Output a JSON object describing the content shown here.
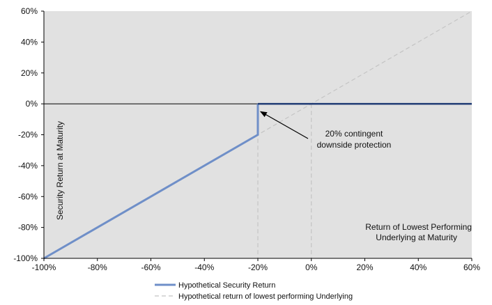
{
  "chart_data": {
    "type": "line",
    "title": "",
    "xlabel": "Return of Lowest Performing Underlying at Maturity",
    "xlabel_lines": [
      "Return of Lowest Performing",
      "Underlying at Maturity"
    ],
    "ylabel": "Security Return at Maturity",
    "xlim": [
      -100,
      60
    ],
    "ylim": [
      -100,
      60
    ],
    "x_ticks": [
      -100,
      -80,
      -60,
      -40,
      -20,
      0,
      20,
      40,
      60
    ],
    "y_ticks": [
      -100,
      -80,
      -60,
      -40,
      -20,
      0,
      20,
      40,
      60
    ],
    "x_tick_labels": [
      "-100%",
      "-80%",
      "-60%",
      "-40%",
      "-20%",
      "0%",
      "20%",
      "40%",
      "60%"
    ],
    "y_tick_labels": [
      "-100%",
      "-80%",
      "-60%",
      "-40%",
      "-20%",
      "0%",
      "20%",
      "40%",
      "60%"
    ],
    "grid": false,
    "legend_position": "bottom",
    "series": [
      {
        "name": "Hypothetical Security Return",
        "x": [
          -100,
          -20,
          -20,
          60
        ],
        "y": [
          -100,
          -20,
          0,
          0
        ],
        "color": "#6f8fc8",
        "color_flat": "#1f3a73",
        "style": "solid"
      },
      {
        "name": "Hypothetical return of lowest performing Underlying",
        "x": [
          -100,
          60
        ],
        "y": [
          -100,
          60
        ],
        "color": "#c4c4c4",
        "style": "dashed"
      }
    ],
    "reference_lines": [
      {
        "axis": "x",
        "value": -20,
        "style": "dashed",
        "color": "#c4c4c4"
      },
      {
        "axis": "x",
        "value": 0,
        "style": "dashed",
        "color": "#c4c4c4"
      },
      {
        "axis": "y",
        "value": 0,
        "style": "solid",
        "color": "#000000"
      }
    ],
    "annotation": {
      "lines": [
        "20% contingent",
        "downside protection"
      ],
      "arrow_to": {
        "x": -19,
        "y": -5
      }
    },
    "colors": {
      "plot_background": "#e1e1e1",
      "axis": "#000000"
    }
  }
}
